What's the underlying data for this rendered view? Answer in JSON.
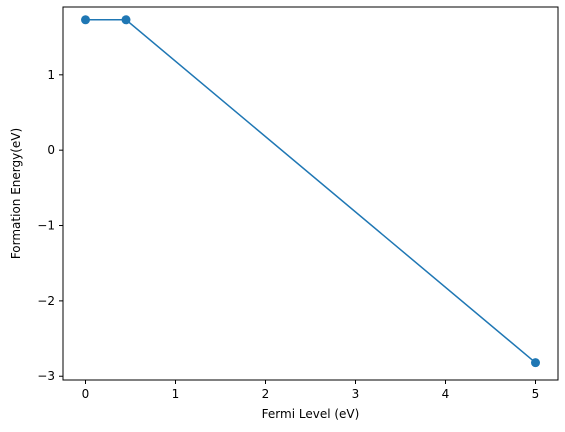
{
  "chart_data": {
    "type": "line",
    "title": "",
    "xlabel": "Fermi Level (eV)",
    "ylabel": "Formation Energy(eV)",
    "xlim": [
      -0.25,
      5.25
    ],
    "ylim": [
      -3.05,
      1.9
    ],
    "xticks": [
      0,
      1,
      2,
      3,
      4,
      5
    ],
    "xtick_labels": [
      "0",
      "1",
      "2",
      "3",
      "4",
      "5"
    ],
    "yticks": [
      -3,
      -2,
      -1,
      0,
      1
    ],
    "ytick_labels": [
      "−3",
      "−2",
      "−1",
      "0",
      "1"
    ],
    "grid": false,
    "series": [
      {
        "x": [
          0,
          0.45,
          5
        ],
        "y": [
          1.73,
          1.73,
          -2.82
        ],
        "color": "#1f77b4",
        "marker": "circle"
      }
    ]
  }
}
